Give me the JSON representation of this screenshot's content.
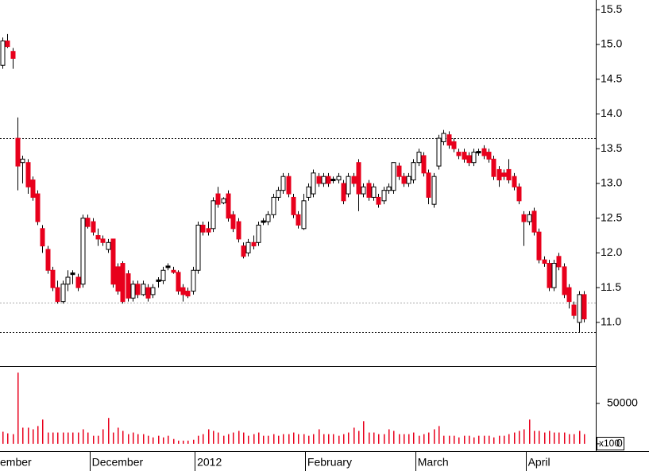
{
  "chart_data": {
    "type": "candlestick",
    "up_color": "#ffffff",
    "down_color": "#e8001c",
    "unchanged_color": "#000000",
    "ylim": [
      10.37,
      15.64
    ],
    "yticks": [
      {
        "value": 11,
        "label": "11.0"
      },
      {
        "value": 11.5,
        "label": "11.5"
      },
      {
        "value": 12,
        "label": "12.0"
      },
      {
        "value": 12.5,
        "label": "12.5"
      },
      {
        "value": 13,
        "label": "13.0"
      },
      {
        "value": 13.5,
        "label": "13.5"
      },
      {
        "value": 14,
        "label": "14.0"
      },
      {
        "value": 14.5,
        "label": "14.5"
      },
      {
        "value": 15,
        "label": "15.0"
      },
      {
        "value": 15.5,
        "label": "15.5"
      }
    ],
    "reference_lines": [
      {
        "value": 13.65,
        "color": "#000000"
      },
      {
        "value": 11.28,
        "color": "#aaaaaa"
      },
      {
        "value": 10.86,
        "color": "#000000"
      }
    ],
    "volume_color": "#e8001c",
    "volume_ylim": [
      -9000,
      95000
    ],
    "volume_yticks": [
      0,
      50000
    ],
    "volume_unit_label": "x100",
    "categories": [
      "ember",
      null,
      null,
      null,
      null,
      null,
      null,
      null,
      null,
      null,
      null,
      null,
      null,
      null,
      null,
      null,
      null,
      null,
      "December",
      null,
      null,
      null,
      null,
      null,
      null,
      null,
      null,
      null,
      null,
      null,
      null,
      null,
      null,
      null,
      null,
      null,
      null,
      null,
      null,
      "2012",
      null,
      null,
      null,
      null,
      null,
      null,
      null,
      null,
      null,
      null,
      null,
      null,
      null,
      null,
      null,
      null,
      null,
      null,
      null,
      null,
      null,
      "February",
      null,
      null,
      null,
      null,
      null,
      null,
      null,
      null,
      null,
      null,
      null,
      null,
      null,
      null,
      null,
      null,
      null,
      null,
      null,
      null,
      null,
      "March",
      null,
      null,
      null,
      null,
      null,
      null,
      null,
      null,
      null,
      null,
      null,
      null,
      null,
      null,
      null,
      null,
      null,
      null,
      null,
      null,
      null,
      "April",
      null,
      null,
      null,
      null,
      null,
      null,
      null,
      null,
      null,
      null,
      null
    ],
    "ohlc": [
      [
        14.7,
        15.1,
        14.65,
        15.05
      ],
      [
        15.05,
        15.15,
        14.95,
        14.97
      ],
      [
        14.9,
        14.95,
        14.65,
        14.8
      ],
      [
        13.65,
        13.95,
        12.9,
        13.25
      ],
      [
        13.3,
        13.4,
        13.0,
        13.35
      ],
      [
        13.3,
        13.35,
        12.85,
        12.95
      ],
      [
        13.05,
        13.1,
        12.75,
        12.8
      ],
      [
        12.85,
        12.9,
        12.4,
        12.45
      ],
      [
        12.35,
        12.4,
        12.0,
        12.1
      ],
      [
        12.05,
        12.1,
        11.7,
        11.75
      ],
      [
        11.75,
        11.8,
        11.45,
        11.5
      ],
      [
        11.5,
        11.6,
        11.27,
        11.3
      ],
      [
        11.3,
        11.6,
        11.27,
        11.55
      ],
      [
        11.55,
        11.75,
        11.45,
        11.65
      ],
      [
        11.7,
        11.75,
        11.55,
        11.7
      ],
      [
        11.65,
        11.7,
        11.45,
        11.5
      ],
      [
        11.55,
        12.55,
        11.5,
        12.5
      ],
      [
        12.5,
        12.55,
        12.35,
        12.38
      ],
      [
        12.45,
        12.5,
        12.25,
        12.3
      ],
      [
        12.25,
        12.35,
        12.1,
        12.2
      ],
      [
        12.2,
        12.25,
        12.1,
        12.15
      ],
      [
        12.05,
        12.2,
        12.0,
        12.15
      ],
      [
        12.2,
        12.2,
        11.5,
        11.55
      ],
      [
        11.8,
        11.85,
        11.4,
        11.45
      ],
      [
        11.85,
        11.88,
        11.27,
        11.3
      ],
      [
        11.7,
        11.75,
        11.3,
        11.35
      ],
      [
        11.35,
        11.6,
        11.3,
        11.55
      ],
      [
        11.55,
        11.6,
        11.35,
        11.4
      ],
      [
        11.4,
        11.6,
        11.38,
        11.55
      ],
      [
        11.5,
        11.55,
        11.3,
        11.35
      ],
      [
        11.4,
        11.55,
        11.35,
        11.5
      ],
      [
        11.6,
        11.65,
        11.5,
        11.6
      ],
      [
        11.6,
        11.8,
        11.55,
        11.75
      ],
      [
        11.8,
        11.85,
        11.75,
        11.8
      ],
      [
        11.75,
        11.8,
        11.7,
        11.72
      ],
      [
        11.72,
        11.75,
        11.4,
        11.45
      ],
      [
        11.5,
        11.55,
        11.3,
        11.4
      ],
      [
        11.45,
        11.5,
        11.35,
        11.38
      ],
      [
        11.45,
        11.8,
        11.4,
        11.75
      ],
      [
        11.75,
        12.45,
        11.7,
        12.4
      ],
      [
        12.4,
        12.45,
        12.25,
        12.3
      ],
      [
        12.35,
        12.45,
        12.25,
        12.3
      ],
      [
        12.35,
        12.8,
        12.3,
        12.75
      ],
      [
        12.85,
        12.95,
        12.65,
        12.7
      ],
      [
        12.72,
        12.8,
        12.7,
        12.78
      ],
      [
        12.85,
        12.9,
        12.45,
        12.5
      ],
      [
        12.55,
        12.6,
        12.3,
        12.35
      ],
      [
        12.45,
        12.5,
        12.15,
        12.2
      ],
      [
        12.1,
        12.15,
        11.92,
        11.95
      ],
      [
        12.0,
        12.2,
        11.95,
        12.15
      ],
      [
        12.15,
        12.25,
        12.05,
        12.1
      ],
      [
        12.15,
        12.45,
        12.1,
        12.4
      ],
      [
        12.45,
        12.5,
        12.4,
        12.45
      ],
      [
        12.45,
        12.6,
        12.4,
        12.55
      ],
      [
        12.55,
        12.85,
        12.5,
        12.8
      ],
      [
        12.8,
        12.95,
        12.75,
        12.9
      ],
      [
        12.9,
        13.15,
        12.85,
        13.1
      ],
      [
        13.1,
        13.15,
        12.8,
        12.85
      ],
      [
        12.8,
        12.85,
        12.5,
        12.55
      ],
      [
        12.55,
        12.6,
        12.35,
        12.4
      ],
      [
        12.35,
        12.85,
        12.33,
        12.75
      ],
      [
        12.8,
        13.0,
        12.75,
        12.95
      ],
      [
        12.85,
        13.2,
        12.8,
        13.15
      ],
      [
        13.1,
        13.15,
        12.95,
        13.0
      ],
      [
        13.0,
        13.15,
        12.95,
        13.1
      ],
      [
        13.1,
        13.15,
        12.95,
        13.0
      ],
      [
        13.05,
        13.1,
        13.0,
        13.05
      ],
      [
        13.05,
        13.15,
        13.0,
        13.1
      ],
      [
        13.0,
        13.05,
        12.7,
        12.75
      ],
      [
        12.85,
        13.15,
        12.8,
        13.1
      ],
      [
        13.1,
        13.15,
        12.95,
        13.0
      ],
      [
        13.3,
        13.35,
        12.6,
        12.85
      ],
      [
        12.85,
        13.0,
        12.8,
        12.95
      ],
      [
        13.0,
        13.05,
        12.75,
        12.8
      ],
      [
        12.8,
        13.0,
        12.75,
        12.95
      ],
      [
        12.8,
        12.85,
        12.65,
        12.7
      ],
      [
        12.75,
        12.95,
        12.7,
        12.9
      ],
      [
        12.9,
        13.0,
        12.85,
        12.95
      ],
      [
        12.9,
        13.3,
        12.85,
        13.3
      ],
      [
        13.25,
        13.3,
        13.05,
        13.1
      ],
      [
        13.1,
        13.15,
        12.95,
        13.0
      ],
      [
        13.0,
        13.15,
        12.95,
        13.1
      ],
      [
        13.05,
        13.35,
        13.0,
        13.3
      ],
      [
        13.3,
        13.5,
        13.25,
        13.45
      ],
      [
        13.4,
        13.45,
        13.1,
        13.15
      ],
      [
        13.15,
        13.2,
        12.7,
        12.8
      ],
      [
        12.7,
        13.15,
        12.65,
        13.1
      ],
      [
        13.25,
        13.7,
        13.2,
        13.65
      ],
      [
        13.6,
        13.77,
        13.55,
        13.72
      ],
      [
        13.7,
        13.75,
        13.5,
        13.55
      ],
      [
        13.6,
        13.65,
        13.45,
        13.5
      ],
      [
        13.45,
        13.5,
        13.35,
        13.4
      ],
      [
        13.45,
        13.5,
        13.3,
        13.35
      ],
      [
        13.4,
        13.45,
        13.25,
        13.3
      ],
      [
        13.3,
        13.5,
        13.25,
        13.45
      ],
      [
        13.45,
        13.5,
        13.4,
        13.45
      ],
      [
        13.5,
        13.55,
        13.35,
        13.4
      ],
      [
        13.45,
        13.5,
        13.3,
        13.35
      ],
      [
        13.35,
        13.4,
        13.05,
        13.1
      ],
      [
        13.2,
        13.25,
        12.95,
        13.05
      ],
      [
        13.15,
        13.2,
        13.05,
        13.1
      ],
      [
        13.2,
        13.35,
        13.0,
        13.05
      ],
      [
        13.1,
        13.15,
        12.9,
        12.95
      ],
      [
        12.95,
        13.0,
        12.7,
        12.75
      ],
      [
        12.55,
        12.6,
        12.1,
        12.45
      ],
      [
        12.45,
        12.6,
        12.4,
        12.55
      ],
      [
        12.6,
        12.65,
        12.25,
        12.3
      ],
      [
        12.3,
        12.35,
        11.85,
        11.9
      ],
      [
        11.9,
        11.95,
        11.8,
        11.85
      ],
      [
        11.85,
        11.9,
        11.45,
        11.5
      ],
      [
        11.5,
        11.9,
        11.45,
        11.85
      ],
      [
        11.95,
        12.0,
        11.75,
        11.8
      ],
      [
        11.8,
        11.85,
        11.35,
        11.4
      ],
      [
        11.5,
        11.55,
        11.2,
        11.3
      ],
      [
        11.25,
        11.3,
        11.05,
        11.1
      ],
      [
        11.0,
        11.45,
        10.85,
        11.4
      ],
      [
        11.4,
        11.45,
        11.0,
        11.05
      ]
    ],
    "volume": [
      15000,
      13000,
      12000,
      88000,
      20000,
      20000,
      18000,
      22000,
      30000,
      14000,
      14000,
      14000,
      14000,
      14000,
      14000,
      14000,
      18000,
      14000,
      10000,
      10000,
      18000,
      32000,
      14000,
      20000,
      16000,
      12000,
      14000,
      12000,
      12000,
      10000,
      8000,
      10000,
      8000,
      10000,
      6000,
      4000,
      4000,
      4000,
      5000,
      10000,
      12000,
      18000,
      16000,
      14000,
      10000,
      12000,
      14000,
      16000,
      14000,
      10000,
      12000,
      14000,
      10000,
      10000,
      12000,
      10000,
      12000,
      12000,
      14000,
      12000,
      12000,
      10000,
      12000,
      18000,
      12000,
      12000,
      12000,
      10000,
      12000,
      14000,
      20000,
      16000,
      28000,
      14000,
      14000,
      12000,
      12000,
      18000,
      16000,
      12000,
      12000,
      12000,
      14000,
      10000,
      12000,
      14000,
      18000,
      22000,
      10000,
      10000,
      10000,
      8000,
      10000,
      10000,
      8000,
      10000,
      10000,
      10000,
      8000,
      10000,
      10000,
      12000,
      14000,
      16000,
      18000,
      30000,
      16000,
      16000,
      14000,
      16000,
      14000,
      14000,
      14000,
      12000,
      12000,
      16000,
      12000
    ]
  }
}
